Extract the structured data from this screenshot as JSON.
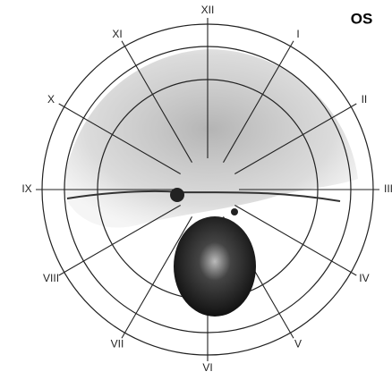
{
  "eye": "OS",
  "hours": [
    "XII",
    "I",
    "II",
    "III",
    "IV",
    "V",
    "VI",
    "VII",
    "VIII",
    "IX",
    "X",
    "XI"
  ]
}
